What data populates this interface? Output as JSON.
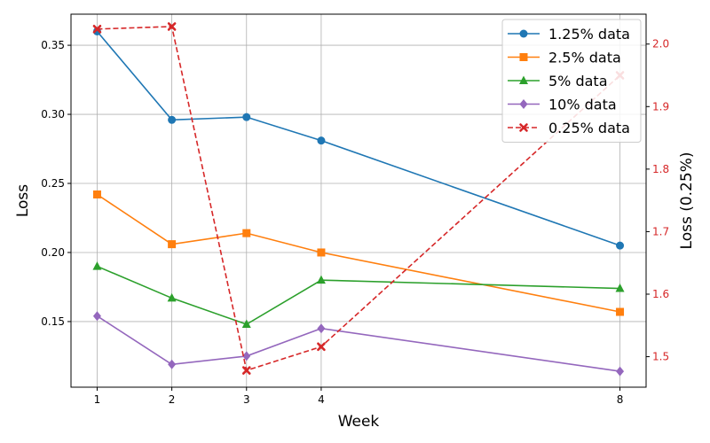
{
  "chart_data": {
    "type": "line",
    "xlabel": "Week",
    "ylabel": "Loss",
    "ylabel_right": "Loss (0.25%)",
    "x": [
      1,
      2,
      3,
      4,
      8
    ],
    "xticks": [
      "1",
      "2",
      "3",
      "4",
      "8"
    ],
    "xlim": [
      0.65,
      8.35
    ],
    "ylim": [
      0.1025,
      0.3725
    ],
    "ylim_right": [
      1.4512,
      2.0478
    ],
    "yticks": [
      "0.15",
      "0.20",
      "0.25",
      "0.30",
      "0.35"
    ],
    "yticks_values": [
      0.15,
      0.2,
      0.25,
      0.3,
      0.35
    ],
    "yticks_right": [
      "1.5",
      "1.6",
      "1.7",
      "1.8",
      "1.9",
      "2.0"
    ],
    "yticks_right_values": [
      1.5,
      1.6,
      1.7,
      1.8,
      1.9,
      2.0
    ],
    "grid": true,
    "legend_position": "top-right",
    "right_axis_color": "#d62728",
    "series": [
      {
        "name": "1.25% data",
        "values": [
          0.36,
          0.296,
          0.298,
          0.281,
          0.205
        ],
        "color": "#1f77b4",
        "marker": "circle",
        "dash": "solid",
        "axis": "left"
      },
      {
        "name": "2.5% data",
        "values": [
          0.242,
          0.206,
          0.214,
          0.2,
          0.157
        ],
        "color": "#ff7f0e",
        "marker": "square",
        "dash": "solid",
        "axis": "left"
      },
      {
        "name": "5% data",
        "values": [
          0.19,
          0.167,
          0.148,
          0.18,
          0.174
        ],
        "color": "#2ca02c",
        "marker": "triangle",
        "dash": "solid",
        "axis": "left"
      },
      {
        "name": "10% data",
        "values": [
          0.154,
          0.119,
          0.125,
          0.145,
          0.114
        ],
        "color": "#9467bd",
        "marker": "diamond",
        "dash": "solid",
        "axis": "left"
      },
      {
        "name": "0.25% data",
        "values": [
          2.024,
          2.028,
          1.478,
          1.516,
          1.95
        ],
        "color": "#d62728",
        "marker": "x",
        "dash": "dashed",
        "axis": "right"
      }
    ]
  }
}
